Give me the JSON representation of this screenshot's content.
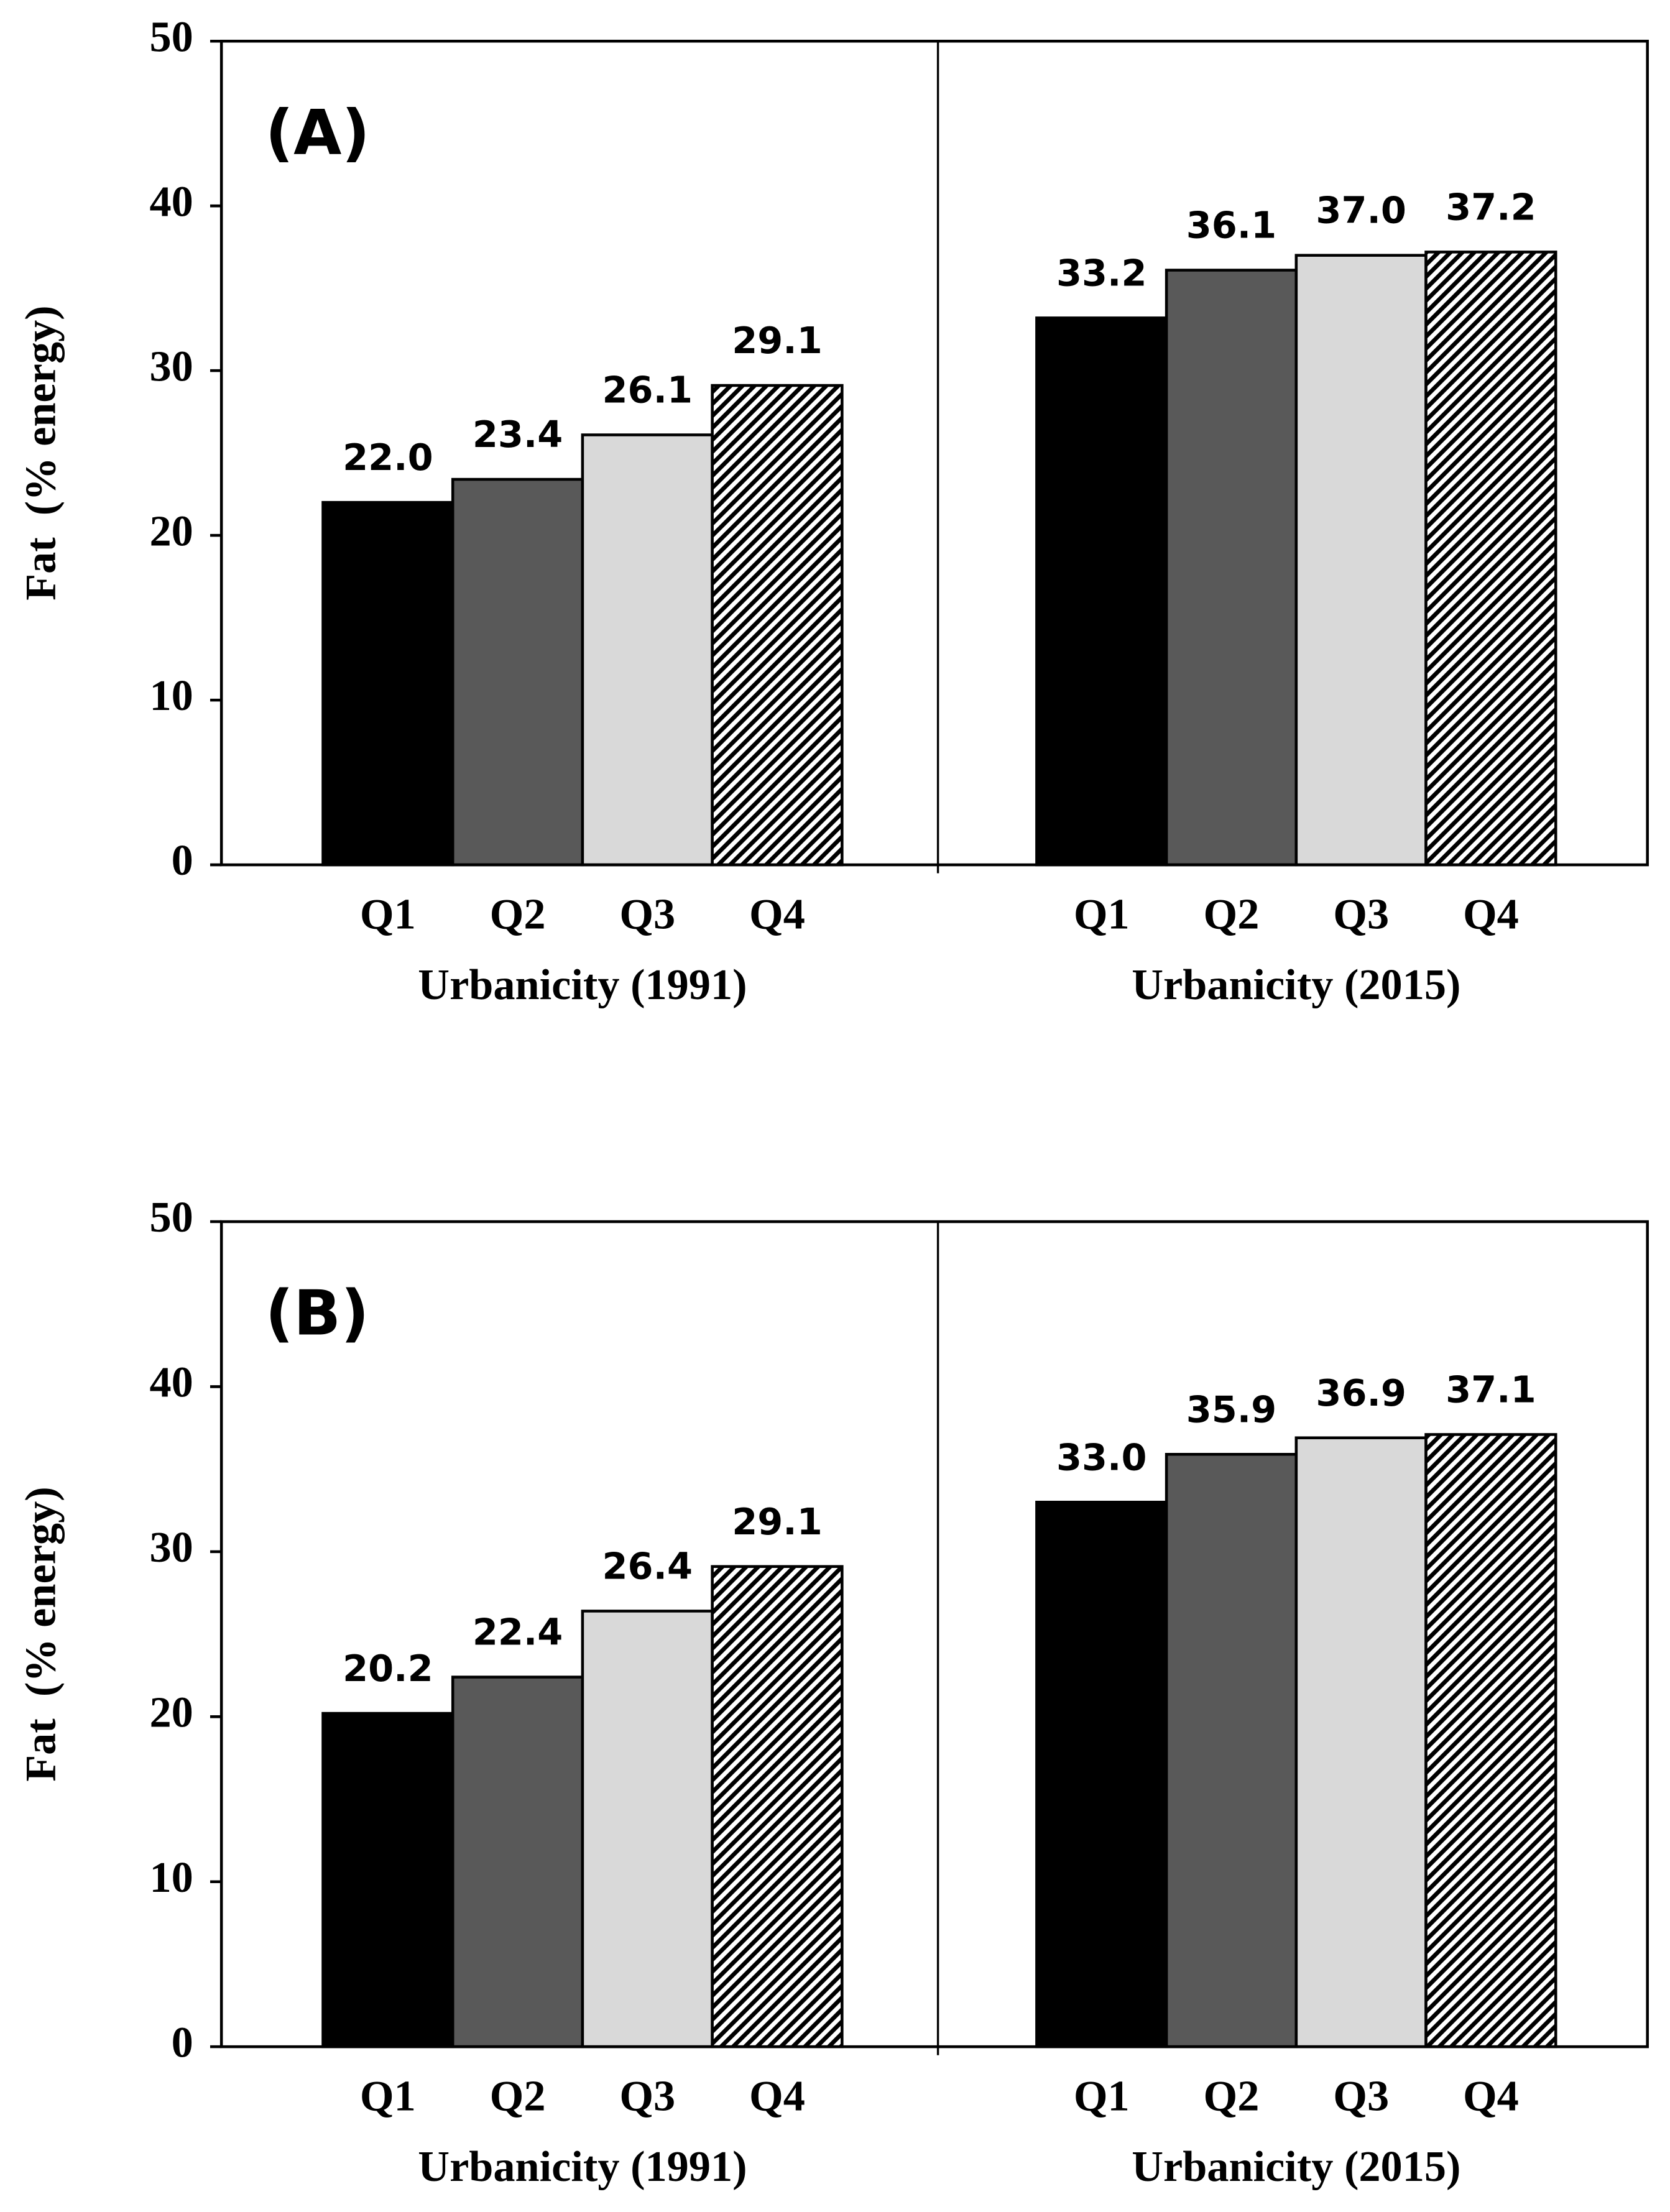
{
  "chart_data": [
    {
      "type": "bar",
      "panel_label": "(A)",
      "y_label": "Fat  (% energy)",
      "ylim": [
        0,
        50
      ],
      "yticks": [
        0,
        10,
        20,
        30,
        40,
        50
      ],
      "colors": [
        "#000000",
        "#595959",
        "#d9d9d9",
        "#ffffff"
      ],
      "hatched": [
        false,
        false,
        false,
        true
      ],
      "groups": [
        {
          "label": "Urbanicity (1991)",
          "categories": [
            "Q1",
            "Q2",
            "Q3",
            "Q4"
          ],
          "values": [
            22.0,
            23.4,
            26.1,
            29.1
          ],
          "value_labels": [
            "22.0",
            "23.4",
            "26.1",
            "29.1"
          ]
        },
        {
          "label": "Urbanicity (2015)",
          "categories": [
            "Q1",
            "Q2",
            "Q3",
            "Q4"
          ],
          "values": [
            33.2,
            36.1,
            37.0,
            37.2
          ],
          "value_labels": [
            "33.2",
            "36.1",
            "37.0",
            "37.2"
          ]
        }
      ]
    },
    {
      "type": "bar",
      "panel_label": "(B)",
      "y_label": "Fat  (% energy)",
      "ylim": [
        0,
        50
      ],
      "yticks": [
        0,
        10,
        20,
        30,
        40,
        50
      ],
      "colors": [
        "#000000",
        "#595959",
        "#d9d9d9",
        "#ffffff"
      ],
      "hatched": [
        false,
        false,
        false,
        true
      ],
      "groups": [
        {
          "label": "Urbanicity (1991)",
          "categories": [
            "Q1",
            "Q2",
            "Q3",
            "Q4"
          ],
          "values": [
            20.2,
            22.4,
            26.4,
            29.1
          ],
          "value_labels": [
            "20.2",
            "22.4",
            "26.4",
            "29.1"
          ]
        },
        {
          "label": "Urbanicity (2015)",
          "categories": [
            "Q1",
            "Q2",
            "Q3",
            "Q4"
          ],
          "values": [
            33.0,
            35.9,
            36.9,
            37.1
          ],
          "value_labels": [
            "33.0",
            "35.9",
            "36.9",
            "37.1"
          ]
        }
      ]
    }
  ]
}
